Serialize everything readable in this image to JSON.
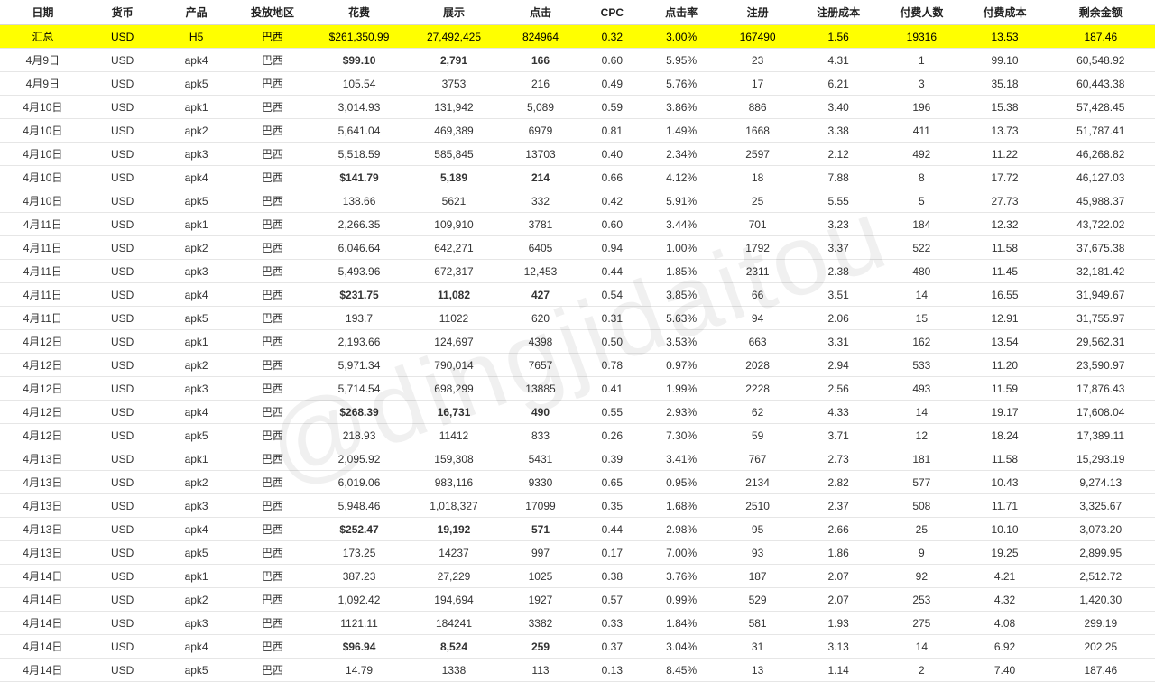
{
  "watermark": "@dingjidaitou",
  "columns": [
    "日期",
    "货币",
    "产品",
    "投放地区",
    "花费",
    "展示",
    "点击",
    "CPC",
    "点击率",
    "注册",
    "注册成本",
    "付费人数",
    "付费成本",
    "剩余金额"
  ],
  "summary": {
    "date": "汇总",
    "currency": "USD",
    "product": "H5",
    "region": "巴西",
    "spend": "$261,350.99",
    "impressions": "27,492,425",
    "clicks": "824964",
    "cpc": "0.32",
    "ctr": "3.00%",
    "reg": "167490",
    "reg_cost": "1.56",
    "payers": "19316",
    "pay_cost": "13.53",
    "balance": "187.46"
  },
  "rows": [
    {
      "date": "4月9日",
      "currency": "USD",
      "product": "apk4",
      "region": "巴西",
      "spend": "$99.10",
      "impressions": "2,791",
      "clicks": "166",
      "cpc": "0.60",
      "ctr": "5.95%",
      "reg": "23",
      "reg_cost": "4.31",
      "payers": "1",
      "pay_cost": "99.10",
      "balance": "60,548.92",
      "bold": true
    },
    {
      "date": "4月9日",
      "currency": "USD",
      "product": "apk5",
      "region": "巴西",
      "spend": "105.54",
      "impressions": "3753",
      "clicks": "216",
      "cpc": "0.49",
      "ctr": "5.76%",
      "reg": "17",
      "reg_cost": "6.21",
      "payers": "3",
      "pay_cost": "35.18",
      "balance": "60,443.38"
    },
    {
      "date": "4月10日",
      "currency": "USD",
      "product": "apk1",
      "region": "巴西",
      "spend": "3,014.93",
      "impressions": "131,942",
      "clicks": "5,089",
      "cpc": "0.59",
      "ctr": "3.86%",
      "reg": "886",
      "reg_cost": "3.40",
      "payers": "196",
      "pay_cost": "15.38",
      "balance": "57,428.45"
    },
    {
      "date": "4月10日",
      "currency": "USD",
      "product": "apk2",
      "region": "巴西",
      "spend": "5,641.04",
      "impressions": "469,389",
      "clicks": "6979",
      "cpc": "0.81",
      "ctr": "1.49%",
      "reg": "1668",
      "reg_cost": "3.38",
      "payers": "411",
      "pay_cost": "13.73",
      "balance": "51,787.41"
    },
    {
      "date": "4月10日",
      "currency": "USD",
      "product": "apk3",
      "region": "巴西",
      "spend": "5,518.59",
      "impressions": "585,845",
      "clicks": "13703",
      "cpc": "0.40",
      "ctr": "2.34%",
      "reg": "2597",
      "reg_cost": "2.12",
      "payers": "492",
      "pay_cost": "11.22",
      "balance": "46,268.82"
    },
    {
      "date": "4月10日",
      "currency": "USD",
      "product": "apk4",
      "region": "巴西",
      "spend": "$141.79",
      "impressions": "5,189",
      "clicks": "214",
      "cpc": "0.66",
      "ctr": "4.12%",
      "reg": "18",
      "reg_cost": "7.88",
      "payers": "8",
      "pay_cost": "17.72",
      "balance": "46,127.03",
      "bold": true
    },
    {
      "date": "4月10日",
      "currency": "USD",
      "product": "apk5",
      "region": "巴西",
      "spend": "138.66",
      "impressions": "5621",
      "clicks": "332",
      "cpc": "0.42",
      "ctr": "5.91%",
      "reg": "25",
      "reg_cost": "5.55",
      "payers": "5",
      "pay_cost": "27.73",
      "balance": "45,988.37"
    },
    {
      "date": "4月11日",
      "currency": "USD",
      "product": "apk1",
      "region": "巴西",
      "spend": "2,266.35",
      "impressions": "109,910",
      "clicks": "3781",
      "cpc": "0.60",
      "ctr": "3.44%",
      "reg": "701",
      "reg_cost": "3.23",
      "payers": "184",
      "pay_cost": "12.32",
      "balance": "43,722.02"
    },
    {
      "date": "4月11日",
      "currency": "USD",
      "product": "apk2",
      "region": "巴西",
      "spend": "6,046.64",
      "impressions": "642,271",
      "clicks": "6405",
      "cpc": "0.94",
      "ctr": "1.00%",
      "reg": "1792",
      "reg_cost": "3.37",
      "payers": "522",
      "pay_cost": "11.58",
      "balance": "37,675.38"
    },
    {
      "date": "4月11日",
      "currency": "USD",
      "product": "apk3",
      "region": "巴西",
      "spend": "5,493.96",
      "impressions": "672,317",
      "clicks": "12,453",
      "cpc": "0.44",
      "ctr": "1.85%",
      "reg": "2311",
      "reg_cost": "2.38",
      "payers": "480",
      "pay_cost": "11.45",
      "balance": "32,181.42"
    },
    {
      "date": "4月11日",
      "currency": "USD",
      "product": "apk4",
      "region": "巴西",
      "spend": "$231.75",
      "impressions": "11,082",
      "clicks": "427",
      "cpc": "0.54",
      "ctr": "3.85%",
      "reg": "66",
      "reg_cost": "3.51",
      "payers": "14",
      "pay_cost": "16.55",
      "balance": "31,949.67",
      "bold": true
    },
    {
      "date": "4月11日",
      "currency": "USD",
      "product": "apk5",
      "region": "巴西",
      "spend": "193.7",
      "impressions": "11022",
      "clicks": "620",
      "cpc": "0.31",
      "ctr": "5.63%",
      "reg": "94",
      "reg_cost": "2.06",
      "payers": "15",
      "pay_cost": "12.91",
      "balance": "31,755.97"
    },
    {
      "date": "4月12日",
      "currency": "USD",
      "product": "apk1",
      "region": "巴西",
      "spend": "2,193.66",
      "impressions": "124,697",
      "clicks": "4398",
      "cpc": "0.50",
      "ctr": "3.53%",
      "reg": "663",
      "reg_cost": "3.31",
      "payers": "162",
      "pay_cost": "13.54",
      "balance": "29,562.31"
    },
    {
      "date": "4月12日",
      "currency": "USD",
      "product": "apk2",
      "region": "巴西",
      "spend": "5,971.34",
      "impressions": "790,014",
      "clicks": "7657",
      "cpc": "0.78",
      "ctr": "0.97%",
      "reg": "2028",
      "reg_cost": "2.94",
      "payers": "533",
      "pay_cost": "11.20",
      "balance": "23,590.97"
    },
    {
      "date": "4月12日",
      "currency": "USD",
      "product": "apk3",
      "region": "巴西",
      "spend": "5,714.54",
      "impressions": "698,299",
      "clicks": "13885",
      "cpc": "0.41",
      "ctr": "1.99%",
      "reg": "2228",
      "reg_cost": "2.56",
      "payers": "493",
      "pay_cost": "11.59",
      "balance": "17,876.43"
    },
    {
      "date": "4月12日",
      "currency": "USD",
      "product": "apk4",
      "region": "巴西",
      "spend": "$268.39",
      "impressions": "16,731",
      "clicks": "490",
      "cpc": "0.55",
      "ctr": "2.93%",
      "reg": "62",
      "reg_cost": "4.33",
      "payers": "14",
      "pay_cost": "19.17",
      "balance": "17,608.04",
      "bold": true
    },
    {
      "date": "4月12日",
      "currency": "USD",
      "product": "apk5",
      "region": "巴西",
      "spend": "218.93",
      "impressions": "11412",
      "clicks": "833",
      "cpc": "0.26",
      "ctr": "7.30%",
      "reg": "59",
      "reg_cost": "3.71",
      "payers": "12",
      "pay_cost": "18.24",
      "balance": "17,389.11"
    },
    {
      "date": "4月13日",
      "currency": "USD",
      "product": "apk1",
      "region": "巴西",
      "spend": "2,095.92",
      "impressions": "159,308",
      "clicks": "5431",
      "cpc": "0.39",
      "ctr": "3.41%",
      "reg": "767",
      "reg_cost": "2.73",
      "payers": "181",
      "pay_cost": "11.58",
      "balance": "15,293.19"
    },
    {
      "date": "4月13日",
      "currency": "USD",
      "product": "apk2",
      "region": "巴西",
      "spend": "6,019.06",
      "impressions": "983,116",
      "clicks": "9330",
      "cpc": "0.65",
      "ctr": "0.95%",
      "reg": "2134",
      "reg_cost": "2.82",
      "payers": "577",
      "pay_cost": "10.43",
      "balance": "9,274.13"
    },
    {
      "date": "4月13日",
      "currency": "USD",
      "product": "apk3",
      "region": "巴西",
      "spend": "5,948.46",
      "impressions": "1,018,327",
      "clicks": "17099",
      "cpc": "0.35",
      "ctr": "1.68%",
      "reg": "2510",
      "reg_cost": "2.37",
      "payers": "508",
      "pay_cost": "11.71",
      "balance": "3,325.67"
    },
    {
      "date": "4月13日",
      "currency": "USD",
      "product": "apk4",
      "region": "巴西",
      "spend": "$252.47",
      "impressions": "19,192",
      "clicks": "571",
      "cpc": "0.44",
      "ctr": "2.98%",
      "reg": "95",
      "reg_cost": "2.66",
      "payers": "25",
      "pay_cost": "10.10",
      "balance": "3,073.20",
      "bold": true
    },
    {
      "date": "4月13日",
      "currency": "USD",
      "product": "apk5",
      "region": "巴西",
      "spend": "173.25",
      "impressions": "14237",
      "clicks": "997",
      "cpc": "0.17",
      "ctr": "7.00%",
      "reg": "93",
      "reg_cost": "1.86",
      "payers": "9",
      "pay_cost": "19.25",
      "balance": "2,899.95"
    },
    {
      "date": "4月14日",
      "currency": "USD",
      "product": "apk1",
      "region": "巴西",
      "spend": "387.23",
      "impressions": "27,229",
      "clicks": "1025",
      "cpc": "0.38",
      "ctr": "3.76%",
      "reg": "187",
      "reg_cost": "2.07",
      "payers": "92",
      "pay_cost": "4.21",
      "balance": "2,512.72"
    },
    {
      "date": "4月14日",
      "currency": "USD",
      "product": "apk2",
      "region": "巴西",
      "spend": "1,092.42",
      "impressions": "194,694",
      "clicks": "1927",
      "cpc": "0.57",
      "ctr": "0.99%",
      "reg": "529",
      "reg_cost": "2.07",
      "payers": "253",
      "pay_cost": "4.32",
      "balance": "1,420.30"
    },
    {
      "date": "4月14日",
      "currency": "USD",
      "product": "apk3",
      "region": "巴西",
      "spend": "1121.11",
      "impressions": "184241",
      "clicks": "3382",
      "cpc": "0.33",
      "ctr": "1.84%",
      "reg": "581",
      "reg_cost": "1.93",
      "payers": "275",
      "pay_cost": "4.08",
      "balance": "299.19"
    },
    {
      "date": "4月14日",
      "currency": "USD",
      "product": "apk4",
      "region": "巴西",
      "spend": "$96.94",
      "impressions": "8,524",
      "clicks": "259",
      "cpc": "0.37",
      "ctr": "3.04%",
      "reg": "31",
      "reg_cost": "3.13",
      "payers": "14",
      "pay_cost": "6.92",
      "balance": "202.25",
      "bold": true
    },
    {
      "date": "4月14日",
      "currency": "USD",
      "product": "apk5",
      "region": "巴西",
      "spend": "14.79",
      "impressions": "1338",
      "clicks": "113",
      "cpc": "0.13",
      "ctr": "8.45%",
      "reg": "13",
      "reg_cost": "1.14",
      "payers": "2",
      "pay_cost": "7.40",
      "balance": "187.46"
    }
  ],
  "colWidths": [
    "7.4%",
    "6.4%",
    "6.4%",
    "6.8%",
    "8.2%",
    "8.2%",
    "6.8%",
    "5.6%",
    "6.4%",
    "6.8%",
    "7.2%",
    "7.2%",
    "7.2%",
    "9.4%"
  ]
}
